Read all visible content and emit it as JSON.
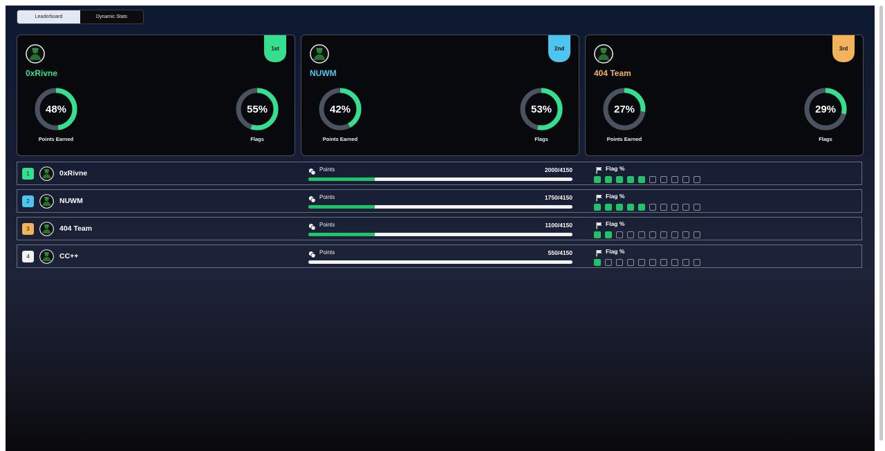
{
  "tabs": [
    "Leaderboard",
    "Dynamic Stats"
  ],
  "active_tab": 0,
  "colors": {
    "green": "#34e08f",
    "blue": "#4cc6f0",
    "orange": "#f3b35b",
    "white": "#f2f2f2",
    "fill": "#1fc36a"
  },
  "podium": [
    {
      "name": "0xRivne",
      "place": "1st",
      "points_pct": "48%",
      "points_label": "Points Earned",
      "flags_pct": "55%",
      "flags_label": "Flags",
      "points_value": 0.48,
      "flags_value": 0.55
    },
    {
      "name": "NUWM",
      "place": "2nd",
      "points_pct": "42%",
      "points_label": "Points Earned",
      "flags_pct": "53%",
      "flags_label": "Flags",
      "points_value": 0.42,
      "flags_value": 0.53
    },
    {
      "name": "404 Team",
      "place": "3rd",
      "points_pct": "27%",
      "points_label": "Points Earned",
      "flags_pct": "29%",
      "flags_label": "Flags",
      "points_value": 0.27,
      "flags_value": 0.29
    }
  ],
  "rows": [
    {
      "rank": "1",
      "name": "0xRivne",
      "points_label": "Points",
      "points_value": "2000/4150",
      "points_fraction": 0.25,
      "flag_label": "Flag %",
      "flags_on": 5,
      "flags_total": 10
    },
    {
      "rank": "2",
      "name": "NUWM",
      "points_label": "Points",
      "points_value": "1750/4150",
      "points_fraction": 0.25,
      "flag_label": "Flag %",
      "flags_on": 5,
      "flags_total": 10
    },
    {
      "rank": "3",
      "name": "404 Team",
      "points_label": "Points",
      "points_value": "1100/4150",
      "points_fraction": 0.25,
      "flag_label": "Flag %",
      "flags_on": 2,
      "flags_total": 10
    },
    {
      "rank": "4",
      "name": "CC++",
      "points_label": "Points",
      "points_value": "550/4150",
      "points_fraction": 0,
      "flag_label": "Flag %",
      "flags_on": 1,
      "flags_total": 10
    }
  ]
}
